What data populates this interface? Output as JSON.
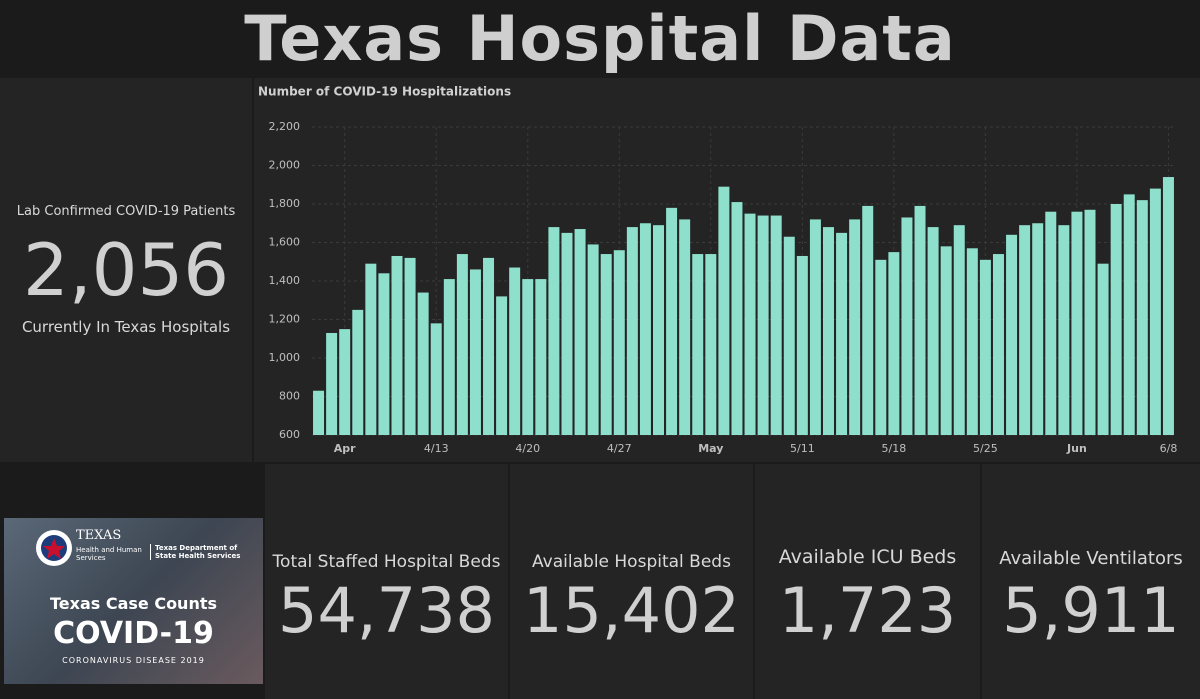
{
  "header": {
    "title": "Texas Hospital Data"
  },
  "patients": {
    "label": "Lab Confirmed COVID-19 Patients",
    "value": "2,056",
    "sublabel": "Currently In Texas Hospitals"
  },
  "chart_data": {
    "type": "bar",
    "title": "Number of COVID-19 Hospitalizations",
    "color": "#8ee0cc",
    "grid": true,
    "categories": [
      null,
      null,
      "Apr",
      null,
      null,
      null,
      null,
      null,
      null,
      "4/13",
      null,
      null,
      null,
      null,
      null,
      null,
      "4/20",
      null,
      null,
      null,
      null,
      null,
      null,
      "4/27",
      null,
      null,
      null,
      null,
      null,
      null,
      "May",
      null,
      null,
      null,
      null,
      null,
      null,
      "5/11",
      null,
      null,
      null,
      null,
      null,
      null,
      "5/18",
      null,
      null,
      null,
      null,
      null,
      null,
      "5/25",
      null,
      null,
      null,
      null,
      null,
      null,
      "Jun",
      null,
      null,
      null,
      null,
      null,
      null,
      "6/8"
    ],
    "values": [
      830,
      1130,
      1150,
      1250,
      1490,
      1440,
      1530,
      1520,
      1340,
      1180,
      1410,
      1540,
      1460,
      1520,
      1320,
      1470,
      1410,
      1410,
      1680,
      1650,
      1670,
      1590,
      1540,
      1560,
      1680,
      1700,
      1690,
      1780,
      1720,
      1540,
      1540,
      1890,
      1810,
      1750,
      1740,
      1740,
      1630,
      1530,
      1720,
      1680,
      1650,
      1720,
      1790,
      1510,
      1550,
      1730,
      1790,
      1680,
      1580,
      1690,
      1570,
      1510,
      1540,
      1640,
      1690,
      1700,
      1760,
      1690,
      1760,
      1770,
      1490,
      1800,
      1850,
      1820,
      1880,
      1940
    ],
    "ylim": [
      600,
      2200
    ],
    "yticks": [
      600,
      800,
      {
        "value": 1000,
        "label": "1,000"
      },
      {
        "value": 1200,
        "label": "1,200"
      },
      {
        "value": 1400,
        "label": "1,400"
      },
      {
        "value": 1600,
        "label": "1,600"
      },
      {
        "value": 1800,
        "label": "1,800"
      },
      {
        "value": 2000,
        "label": "2,000"
      },
      {
        "value": 2200,
        "label": "2,200"
      }
    ]
  },
  "image": {
    "org": "TEXAS",
    "org_sub": "Health and Human Services",
    "dept": "Texas Department of State Health Services",
    "heading": "Texas Case Counts",
    "covid": "COVID-19",
    "disease": "CORONAVIRUS DISEASE 2019"
  },
  "kpis": [
    {
      "label": "Total Staffed Hospital Beds",
      "value": "54,738"
    },
    {
      "label": "Available Hospital Beds",
      "value": "15,402"
    },
    {
      "label": "Available ICU Beds",
      "value": "1,723"
    },
    {
      "label": "Available Ventilators",
      "value": "5,911"
    }
  ]
}
